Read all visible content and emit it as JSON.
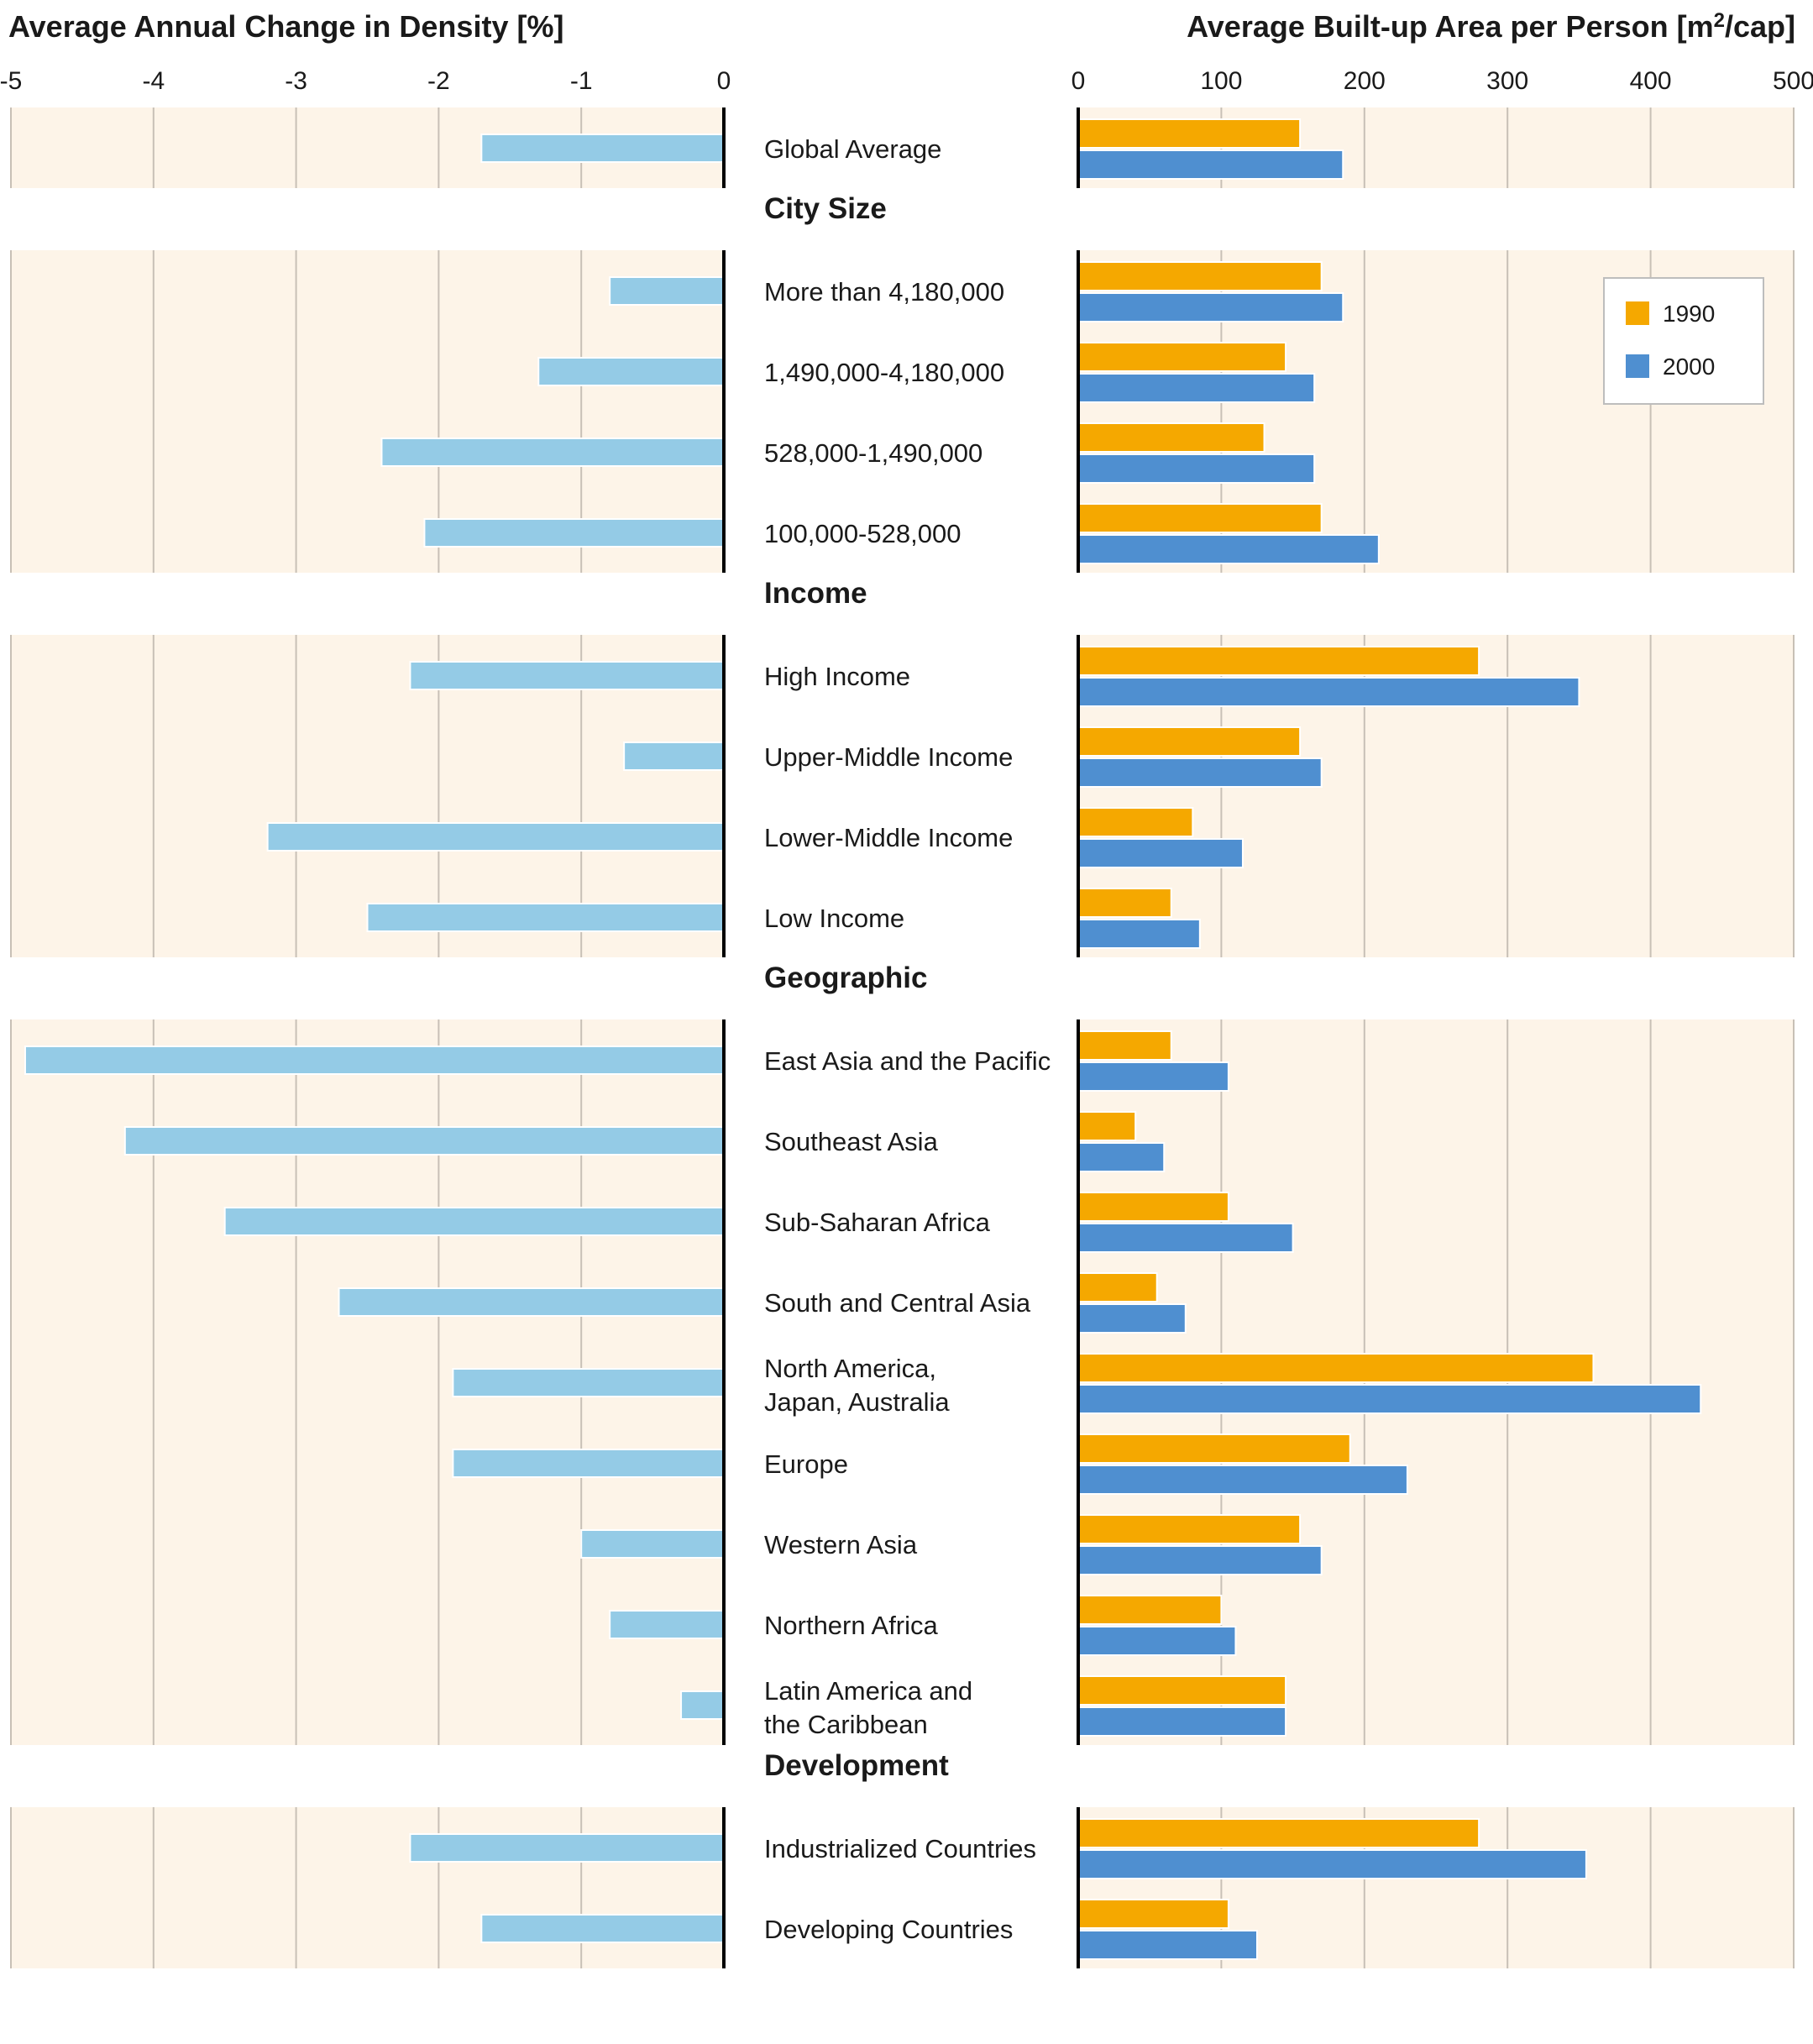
{
  "chart_data": {
    "type": "bar",
    "left_panel": {
      "title": "Average Annual Change in Density [%]",
      "xlim": [
        -5,
        0
      ],
      "ticks": [
        "-5",
        "-4",
        "-3",
        "-2",
        "-1",
        "0"
      ],
      "grid": true
    },
    "right_panel": {
      "title_prefix": "Average Built-up Area per Person [m",
      "title_sup": "2",
      "title_suffix": "/cap]",
      "xlim": [
        0,
        500
      ],
      "ticks": [
        "0",
        "100",
        "200",
        "300",
        "400",
        "500"
      ],
      "grid": true,
      "legend": {
        "placement": "top-right",
        "items": [
          {
            "name": "1990",
            "color": "#f5a800"
          },
          {
            "name": "2000",
            "color": "#4f8fd0"
          }
        ]
      }
    },
    "colors": {
      "density": "#94cbe6",
      "series_1990": "#f5a800",
      "series_2000": "#4f8fd0",
      "panel_bg": "#fdf4e8",
      "grid": "#c8c0b6"
    },
    "groups": [
      {
        "heading": "",
        "rows": [
          {
            "label": [
              "Global Average"
            ],
            "density_change": -1.7,
            "area_1990": 155,
            "area_2000": 185
          }
        ]
      },
      {
        "heading": "City Size",
        "rows": [
          {
            "label": [
              "More than 4,180,000"
            ],
            "density_change": -0.8,
            "area_1990": 170,
            "area_2000": 185
          },
          {
            "label": [
              "1,490,000-4,180,000"
            ],
            "density_change": -1.3,
            "area_1990": 145,
            "area_2000": 165
          },
          {
            "label": [
              "528,000-1,490,000"
            ],
            "density_change": -2.4,
            "area_1990": 130,
            "area_2000": 165
          },
          {
            "label": [
              "100,000-528,000"
            ],
            "density_change": -2.1,
            "area_1990": 170,
            "area_2000": 210
          }
        ]
      },
      {
        "heading": "Income",
        "rows": [
          {
            "label": [
              "High Income"
            ],
            "density_change": -2.2,
            "area_1990": 280,
            "area_2000": 350
          },
          {
            "label": [
              "Upper-Middle Income"
            ],
            "density_change": -0.7,
            "area_1990": 155,
            "area_2000": 170
          },
          {
            "label": [
              "Lower-Middle Income"
            ],
            "density_change": -3.2,
            "area_1990": 80,
            "area_2000": 115
          },
          {
            "label": [
              "Low Income"
            ],
            "density_change": -2.5,
            "area_1990": 65,
            "area_2000": 85
          }
        ]
      },
      {
        "heading": "Geographic",
        "rows": [
          {
            "label": [
              "East Asia and the Pacific"
            ],
            "density_change": -4.9,
            "area_1990": 65,
            "area_2000": 105
          },
          {
            "label": [
              "Southeast Asia"
            ],
            "density_change": -4.2,
            "area_1990": 40,
            "area_2000": 60
          },
          {
            "label": [
              "Sub-Saharan Africa"
            ],
            "density_change": -3.5,
            "area_1990": 105,
            "area_2000": 150
          },
          {
            "label": [
              "South and Central Asia"
            ],
            "density_change": -2.7,
            "area_1990": 55,
            "area_2000": 75
          },
          {
            "label": [
              "North America,",
              "Japan, Australia"
            ],
            "density_change": -1.9,
            "area_1990": 360,
            "area_2000": 435
          },
          {
            "label": [
              "Europe"
            ],
            "density_change": -1.9,
            "area_1990": 190,
            "area_2000": 230
          },
          {
            "label": [
              "Western Asia"
            ],
            "density_change": -1.0,
            "area_1990": 155,
            "area_2000": 170
          },
          {
            "label": [
              "Northern Africa"
            ],
            "density_change": -0.8,
            "area_1990": 100,
            "area_2000": 110
          },
          {
            "label": [
              "Latin America and",
              "the Caribbean"
            ],
            "density_change": -0.3,
            "area_1990": 145,
            "area_2000": 145
          }
        ]
      },
      {
        "heading": "Development",
        "rows": [
          {
            "label": [
              "Industrialized Countries"
            ],
            "density_change": -2.2,
            "area_1990": 280,
            "area_2000": 355
          },
          {
            "label": [
              "Developing Countries"
            ],
            "density_change": -1.7,
            "area_1990": 105,
            "area_2000": 125
          }
        ]
      }
    ]
  }
}
